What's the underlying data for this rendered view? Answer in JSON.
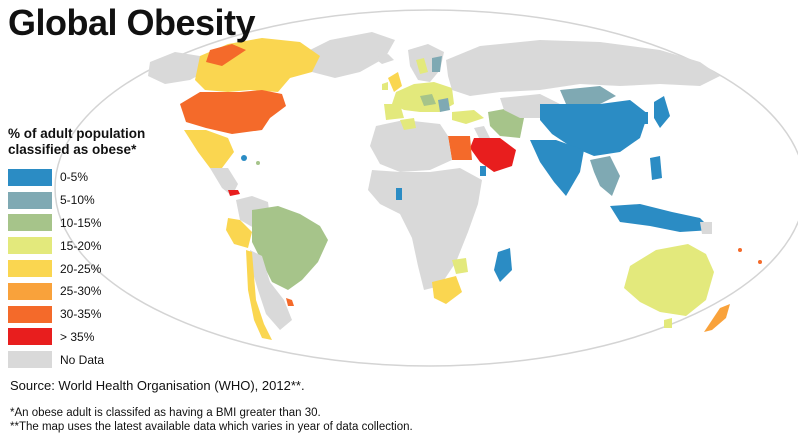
{
  "title": "Global Obesity",
  "legend": {
    "title_line1": "% of adult population",
    "title_line2": "classified as obese*",
    "items": [
      {
        "label": "0-5%",
        "color": "#2b8cc4"
      },
      {
        "label": "5-10%",
        "color": "#7fa9b3"
      },
      {
        "label": "10-15%",
        "color": "#a6c48a"
      },
      {
        "label": "15-20%",
        "color": "#e3e97c"
      },
      {
        "label": "20-25%",
        "color": "#fad650"
      },
      {
        "label": "25-30%",
        "color": "#f9a23b"
      },
      {
        "label": "30-35%",
        "color": "#f46a2a"
      },
      {
        "label": "> 35%",
        "color": "#e81e1e"
      },
      {
        "label": "No Data",
        "color": "#d9d9d9"
      }
    ]
  },
  "source": "Source: World Health Organisation (WHO), 2012**.",
  "notes": {
    "note1": "*An obese adult is classifed as having a BMI greater than 30.",
    "note2": "**The map uses the latest available data which varies in year of data collection."
  }
}
